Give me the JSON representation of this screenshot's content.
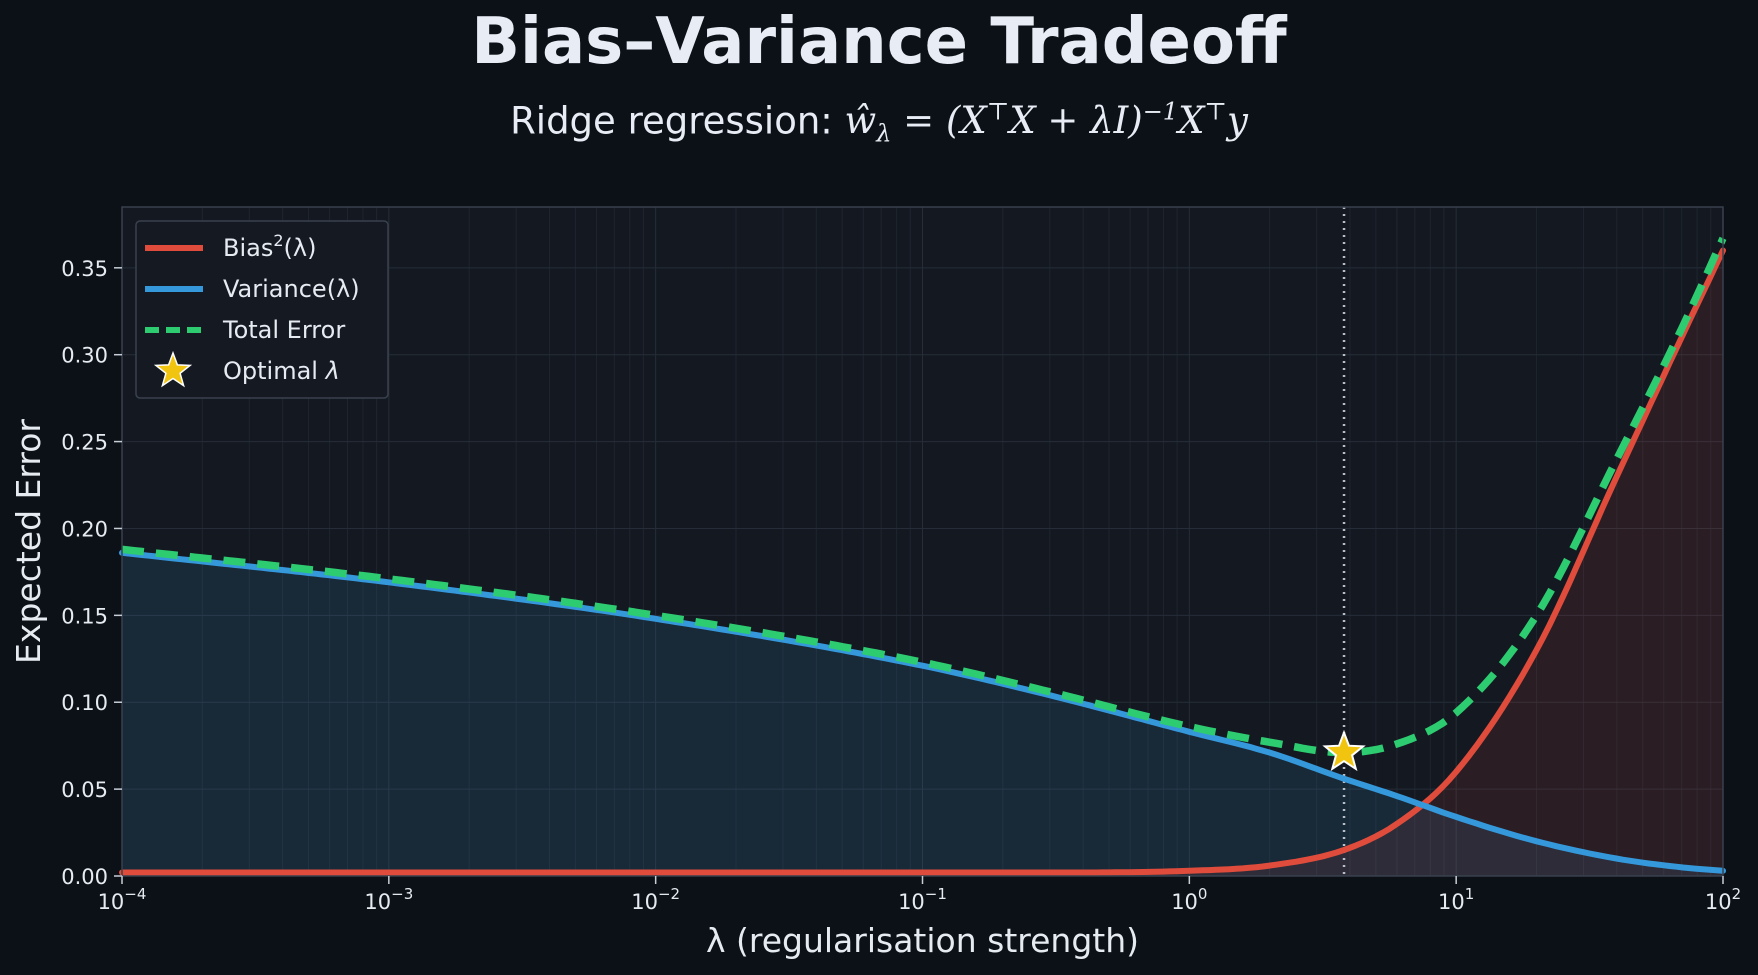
{
  "chart_data": {
    "type": "line",
    "title": "Bias–Variance Tradeoff",
    "subtitle": {
      "prefix": "Ridge regression: ",
      "formula": "ŵλ = (X⊤X + λI)−1X⊤y"
    },
    "xlabel": "λ   (regularisation strength)",
    "ylabel": "Expected Error",
    "xscale": "log",
    "xlim": [
      0.0001,
      100
    ],
    "ylim": [
      0,
      0.385
    ],
    "x_ticks": [
      {
        "value": 0.0001,
        "base": "10",
        "exp": "−4"
      },
      {
        "value": 0.001,
        "base": "10",
        "exp": "−3"
      },
      {
        "value": 0.01,
        "base": "10",
        "exp": "−2"
      },
      {
        "value": 0.1,
        "base": "10",
        "exp": "−1"
      },
      {
        "value": 1,
        "base": "10",
        "exp": "0"
      },
      {
        "value": 10,
        "base": "10",
        "exp": "1"
      },
      {
        "value": 100,
        "base": "10",
        "exp": "2"
      }
    ],
    "y_ticks": [
      "0.00",
      "0.05",
      "0.10",
      "0.15",
      "0.20",
      "0.25",
      "0.30",
      "0.35"
    ],
    "grid": true,
    "legend_position": "top-left",
    "x": [
      0.0001,
      0.001,
      0.01,
      0.1,
      0.3,
      1,
      2,
      3.8,
      6,
      10,
      20,
      40,
      70,
      100
    ],
    "series": [
      {
        "name": "Bias²(λ)",
        "color": "#e04c3c",
        "style": "solid",
        "values": [
          0.002,
          0.002,
          0.002,
          0.002,
          0.002,
          0.003,
          0.006,
          0.015,
          0.03,
          0.06,
          0.13,
          0.23,
          0.31,
          0.36
        ]
      },
      {
        "name": "Variance(λ)",
        "color": "#3498db",
        "style": "solid",
        "values": [
          0.186,
          0.169,
          0.148,
          0.121,
          0.104,
          0.083,
          0.071,
          0.056,
          0.046,
          0.034,
          0.02,
          0.01,
          0.005,
          0.003
        ]
      },
      {
        "name": "Total Error",
        "color": "#2ecc71",
        "style": "dashed",
        "values": [
          0.188,
          0.171,
          0.15,
          0.123,
          0.106,
          0.086,
          0.077,
          0.071,
          0.076,
          0.094,
          0.15,
          0.24,
          0.315,
          0.367
        ]
      }
    ],
    "optimum": {
      "name": "Optimal λ",
      "x": 3.8,
      "y": 0.071,
      "color": "#f1c40f",
      "marker": "star"
    },
    "legend": [
      {
        "base": "Bias",
        "sup": "2",
        "arg": "(λ)",
        "color": "#e04c3c",
        "style": "solid"
      },
      {
        "base": "Variance",
        "sup": "",
        "arg": "(λ)",
        "color": "#3498db",
        "style": "solid"
      },
      {
        "base": "Total Error",
        "sup": "",
        "arg": "",
        "color": "#2ecc71",
        "style": "dashed"
      },
      {
        "base": "Optimal ",
        "sup": "",
        "arg": "λ",
        "color": "#f1c40f",
        "style": "star"
      }
    ]
  }
}
